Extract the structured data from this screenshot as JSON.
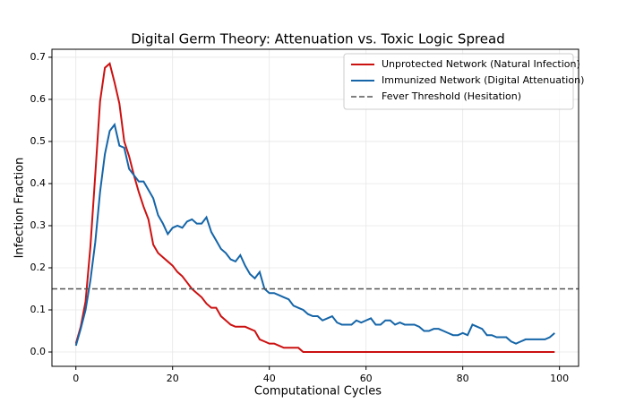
{
  "chart_data": {
    "type": "line",
    "title": "Digital Germ Theory: Attenuation vs. Toxic Logic Spread",
    "xlabel": "Computational Cycles",
    "ylabel": "Infection Fraction",
    "x": [
      0,
      1,
      2,
      3,
      4,
      5,
      6,
      7,
      8,
      9,
      10,
      11,
      12,
      13,
      14,
      15,
      16,
      17,
      18,
      19,
      20,
      21,
      22,
      23,
      24,
      25,
      26,
      27,
      28,
      29,
      30,
      31,
      32,
      33,
      34,
      35,
      36,
      37,
      38,
      39,
      40,
      41,
      42,
      43,
      44,
      45,
      46,
      47,
      48,
      49,
      50,
      51,
      52,
      53,
      54,
      55,
      56,
      57,
      58,
      59,
      60,
      61,
      62,
      63,
      64,
      65,
      66,
      67,
      68,
      69,
      70,
      71,
      72,
      73,
      74,
      75,
      76,
      77,
      78,
      79,
      80,
      81,
      82,
      83,
      84,
      85,
      86,
      87,
      88,
      89,
      90,
      91,
      92,
      93,
      94,
      95,
      96,
      97,
      98,
      99
    ],
    "series": [
      {
        "name": "Unprotected Network (Natural Infection)",
        "color": "#cc1111",
        "values": [
          0.02,
          0.06,
          0.12,
          0.25,
          0.42,
          0.595,
          0.675,
          0.685,
          0.64,
          0.59,
          0.5,
          0.465,
          0.42,
          0.38,
          0.345,
          0.315,
          0.255,
          0.235,
          0.225,
          0.215,
          0.205,
          0.19,
          0.18,
          0.165,
          0.15,
          0.14,
          0.13,
          0.115,
          0.105,
          0.105,
          0.085,
          0.075,
          0.065,
          0.06,
          0.06,
          0.06,
          0.055,
          0.05,
          0.03,
          0.025,
          0.02,
          0.02,
          0.015,
          0.01,
          0.01,
          0.01,
          0.01,
          0,
          0,
          0,
          0,
          0,
          0,
          0,
          0,
          0,
          0,
          0,
          0,
          0,
          0,
          0,
          0,
          0,
          0,
          0,
          0,
          0,
          0,
          0,
          0,
          0,
          0,
          0,
          0,
          0,
          0,
          0,
          0,
          0,
          0,
          0,
          0,
          0,
          0,
          0,
          0,
          0,
          0,
          0,
          0,
          0,
          0,
          0,
          0,
          0,
          0,
          0,
          0,
          0
        ]
      },
      {
        "name": "Immunized Network (Digital Attenuation)",
        "color": "#1565a8",
        "values": [
          0.015,
          0.055,
          0.1,
          0.17,
          0.26,
          0.38,
          0.47,
          0.525,
          0.54,
          0.49,
          0.485,
          0.435,
          0.42,
          0.405,
          0.405,
          0.385,
          0.365,
          0.325,
          0.305,
          0.28,
          0.295,
          0.3,
          0.295,
          0.31,
          0.315,
          0.305,
          0.305,
          0.32,
          0.285,
          0.265,
          0.245,
          0.235,
          0.22,
          0.215,
          0.23,
          0.205,
          0.185,
          0.175,
          0.19,
          0.15,
          0.14,
          0.14,
          0.135,
          0.13,
          0.125,
          0.11,
          0.105,
          0.1,
          0.09,
          0.085,
          0.085,
          0.075,
          0.08,
          0.085,
          0.07,
          0.065,
          0.065,
          0.065,
          0.075,
          0.07,
          0.075,
          0.08,
          0.065,
          0.065,
          0.075,
          0.075,
          0.065,
          0.07,
          0.065,
          0.065,
          0.065,
          0.06,
          0.05,
          0.05,
          0.055,
          0.055,
          0.05,
          0.045,
          0.04,
          0.04,
          0.045,
          0.04,
          0.065,
          0.06,
          0.055,
          0.04,
          0.04,
          0.035,
          0.035,
          0.035,
          0.025,
          0.02,
          0.025,
          0.03,
          0.03,
          0.03,
          0.03,
          0.03,
          0.035,
          0.045
        ]
      }
    ],
    "threshold": {
      "name": "Fever Threshold (Hesitation)",
      "value": 0.15,
      "color": "#555555"
    },
    "xlim": [
      -4.95,
      103.95
    ],
    "xticks": [
      0,
      20,
      40,
      60,
      80,
      100
    ],
    "ylim": [
      -0.034,
      0.719
    ],
    "yticks": [
      {
        "value": 0,
        "label": "0.0"
      },
      0.1,
      0.2,
      0.3,
      0.4,
      0.5,
      0.6,
      0.7
    ],
    "grid": true,
    "legend": "upper right"
  }
}
